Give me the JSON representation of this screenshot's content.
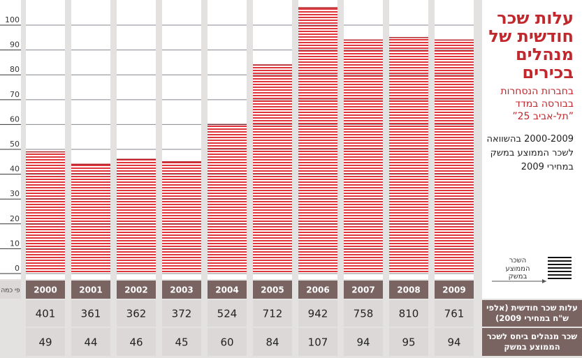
{
  "chart_data": {
    "type": "bar",
    "title": "עלות שכר חודשית של מנהלים בכירים",
    "subtitle": "בחברות הנסחרות בבורסה במדד ”תל-אביב 25”",
    "description": "2000-2009 בהשוואה לשכר הממוצע במשק במחירי 2009",
    "legend_label": "השכר הממוצע במשק",
    "y_label": "פי כמה",
    "categories": [
      "2000",
      "2001",
      "2002",
      "2003",
      "2004",
      "2005",
      "2006",
      "2007",
      "2008",
      "2009"
    ],
    "values": [
      49,
      44,
      46,
      45,
      60,
      84,
      107,
      94,
      95,
      94
    ],
    "value_row_label": "שכר מנהלים ביחס לשכר הממוצע במשק",
    "cost_row_label": "עלות שכר חודשית (אלפי ש\"ח במחירי 2009)",
    "cost_values": [
      401,
      361,
      362,
      372,
      524,
      712,
      942,
      758,
      810,
      761
    ],
    "color": "#e0343a",
    "ylim": [
      0,
      109
    ],
    "yticks": [
      0,
      10,
      20,
      30,
      40,
      50,
      60,
      70,
      80,
      90,
      100
    ],
    "grid": true
  }
}
